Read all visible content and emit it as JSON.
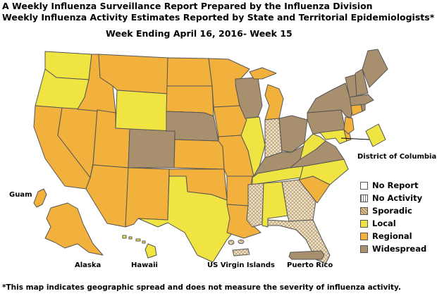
{
  "header": {
    "title_line1": "A Weekly Influenza Surveillance Report Prepared by the Influenza Division",
    "title_line2": "Weekly Influenza Activity Estimates Reported by State and Territorial Epidemiologists*",
    "week": "Week Ending April 16, 2016- Week 15"
  },
  "colors": {
    "no_report": "#ffffff",
    "no_activity": "#ffffff",
    "sporadic": "#f2e2c4",
    "local": "#f0e442",
    "regional": "#f2b13c",
    "widespread": "#a8906e"
  },
  "legend": {
    "items": [
      {
        "key": "no_report",
        "label": "No Report"
      },
      {
        "key": "no_activity",
        "label": "No Activity"
      },
      {
        "key": "sporadic",
        "label": "Sporadic"
      },
      {
        "key": "local",
        "label": "Local"
      },
      {
        "key": "regional",
        "label": "Regional"
      },
      {
        "key": "widespread",
        "label": "Widespread"
      }
    ]
  },
  "labels": {
    "dc": "District of Columbia",
    "guam": "Guam",
    "alaska": "Alaska",
    "hawaii": "Hawaii",
    "usvi": "US Virgin Islands",
    "pr": "Puerto Rico"
  },
  "footnote": "*This map indicates geographic spread and does not measure the severity of influenza activity.",
  "activity": {
    "Washington": "local",
    "Oregon": "local",
    "California": "regional",
    "Nevada": "regional",
    "Idaho": "regional",
    "Montana": "regional",
    "Wyoming": "local",
    "Utah": "regional",
    "Arizona": "regional",
    "Colorado": "widespread",
    "New Mexico": "regional",
    "North Dakota": "regional",
    "South Dakota": "regional",
    "Nebraska": "widespread",
    "Kansas": "regional",
    "Oklahoma": "regional",
    "Texas": "local",
    "Minnesota": "regional",
    "Iowa": "regional",
    "Missouri": "regional",
    "Arkansas": "regional",
    "Louisiana": "regional",
    "Wisconsin": "widespread",
    "Illinois": "local",
    "Michigan": "regional",
    "Indiana": "sporadic",
    "Ohio": "widespread",
    "Kentucky": "widespread",
    "Tennessee": "local",
    "Mississippi": "sporadic",
    "Alabama": "local",
    "Georgia": "sporadic",
    "Florida": "sporadic",
    "South Carolina": "regional",
    "North Carolina": "local",
    "Virginia": "widespread",
    "West Virginia": "local",
    "Pennsylvania": "widespread",
    "New York": "widespread",
    "Maryland": "local",
    "Delaware": "regional",
    "New Jersey": "regional",
    "Connecticut": "regional",
    "Rhode Island": "widespread",
    "Massachusetts": "widespread",
    "Vermont": "widespread",
    "New Hampshire": "widespread",
    "Maine": "widespread",
    "District of Columbia": "local",
    "Alaska": "regional",
    "Hawaii": "local",
    "Guam": "regional",
    "US Virgin Islands": "sporadic",
    "Puerto Rico": "widespread"
  }
}
